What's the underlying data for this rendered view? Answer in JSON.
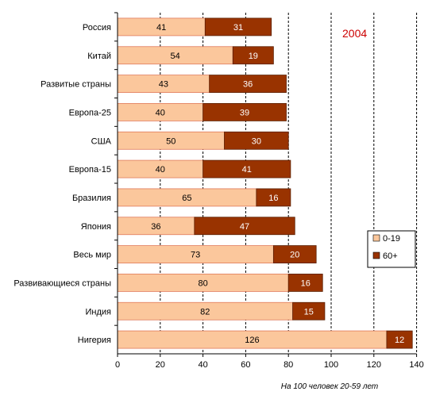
{
  "chart_data": {
    "type": "bar",
    "orientation": "horizontal",
    "stacked": true,
    "annotation": "2004",
    "xlabel": "На 100 человек 20-59 лет",
    "xlim": [
      0,
      140
    ],
    "xticks": [
      0,
      20,
      40,
      60,
      80,
      100,
      120,
      140
    ],
    "grid": "vertical dashed lines at 20-step ticks",
    "legend_position": "right",
    "categories": [
      "Россия",
      "Китай",
      "Развитые страны",
      "Европа-25",
      "США",
      "Европа-15",
      "Бразилия",
      "Япония",
      "Весь мир",
      "Развивающиеся страны",
      "Индия",
      "Нигерия"
    ],
    "series": [
      {
        "name": "0-19",
        "color": "#fbc79c",
        "values": [
          41,
          54,
          43,
          40,
          50,
          40,
          65,
          36,
          73,
          80,
          82,
          126
        ]
      },
      {
        "name": "60+",
        "color": "#993300",
        "values": [
          31,
          19,
          36,
          39,
          30,
          41,
          16,
          47,
          20,
          16,
          15,
          12
        ]
      }
    ],
    "annotation_color": "#cc0000",
    "axis_color": "#000000"
  }
}
